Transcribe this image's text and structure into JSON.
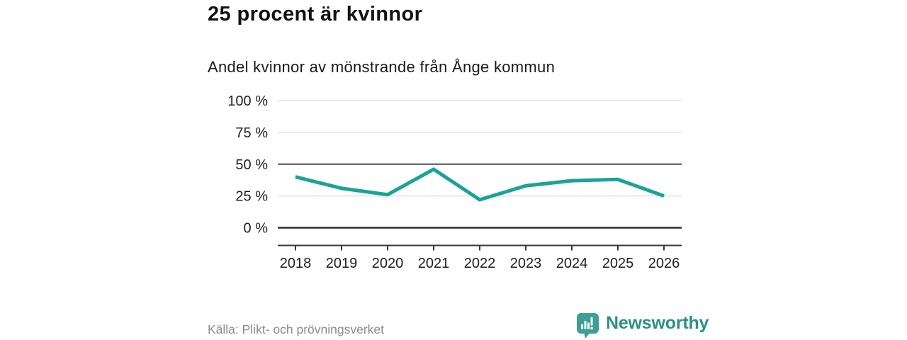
{
  "header": {
    "title_note": "bound from chart_data"
  },
  "footer": {
    "source": "Källa: Plikt- och prövningsverket",
    "brand": "Newsworthy"
  },
  "colors": {
    "line": "#1aa396",
    "grid_light": "#e2e2e2",
    "grid_dark": "#4f4f4f",
    "grid_base": "#2e2e2e",
    "axis": "#383838",
    "tick_text": "#202020",
    "title_text": "#121212",
    "source_text": "#8c8c8c",
    "logo_badge": "#3f9e96",
    "logo_text": "#2b8f89"
  },
  "chart_data": {
    "type": "line",
    "title": "25 procent är kvinnor",
    "subtitle": "Andel kvinnor av mönstrande från Ånge kommun",
    "x": [
      "2018",
      "2019",
      "2020",
      "2021",
      "2022",
      "2023",
      "2024",
      "2025",
      "2026"
    ],
    "values": [
      40,
      31,
      26,
      46,
      22,
      33,
      37,
      38,
      25
    ],
    "xlabel": "",
    "ylabel": "",
    "ylim": [
      0,
      100
    ],
    "y_ticks": [
      {
        "value": 0,
        "label": "0 %"
      },
      {
        "value": 25,
        "label": "25 %"
      },
      {
        "value": 50,
        "label": "50 %"
      },
      {
        "value": 75,
        "label": "75 %"
      },
      {
        "value": 100,
        "label": "100 %"
      }
    ],
    "emphasized_gridlines": [
      50
    ],
    "grid": "horizontal",
    "legend_position": "none"
  }
}
